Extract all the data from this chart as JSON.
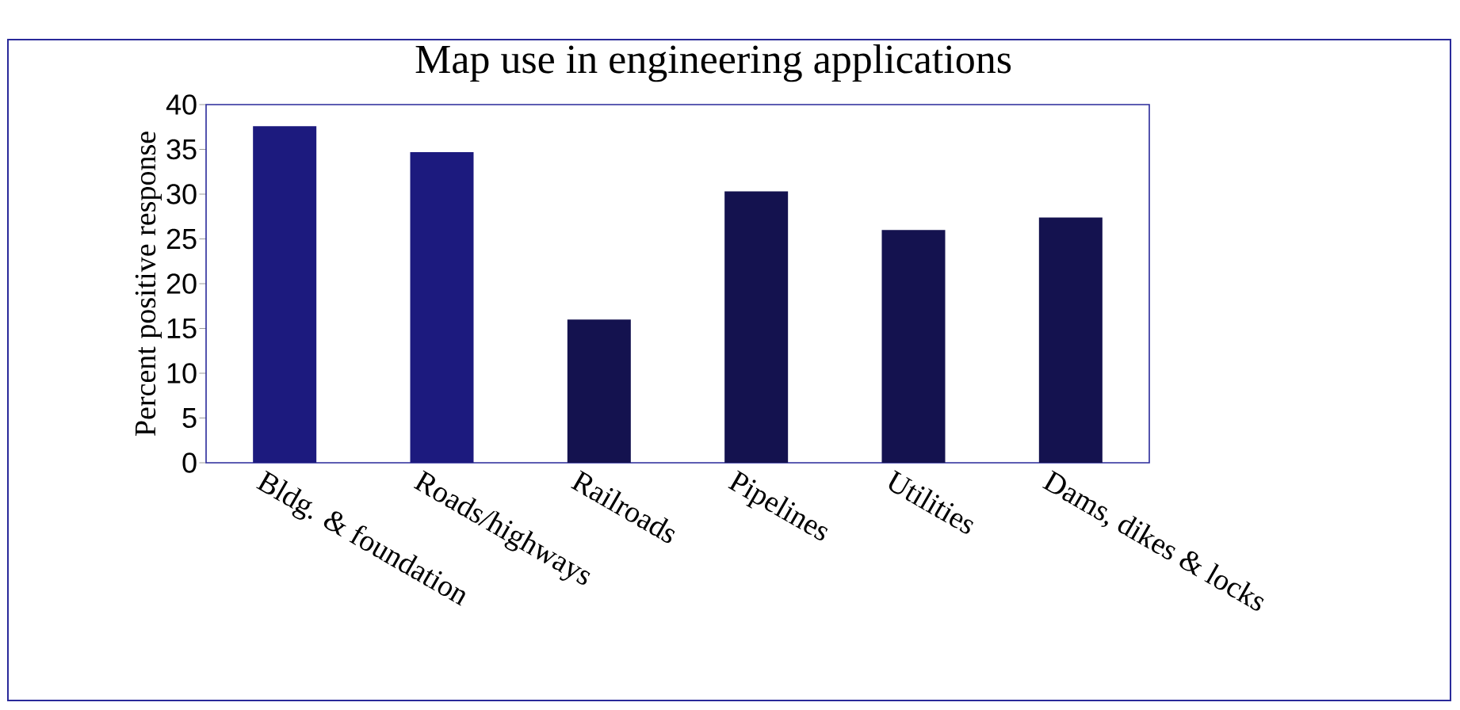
{
  "chart_data": {
    "type": "bar",
    "title": "Map use in engineering applications",
    "ylabel": "Percent positive response",
    "categories": [
      "Bldg. & foundation",
      "Roads/highways",
      "Railroads",
      "Pipelines",
      "Utilities",
      "Dams, dikes & locks"
    ],
    "values": [
      37.6,
      34.7,
      16.0,
      30.3,
      26.0,
      27.4
    ],
    "colors": [
      "#1c1a7e",
      "#1c1a7e",
      "#14124f",
      "#14124f",
      "#14124f",
      "#14124f"
    ],
    "ylim": [
      0,
      40
    ],
    "yticks": [
      0,
      5,
      10,
      15,
      20,
      25,
      30,
      35,
      40
    ],
    "grid": false
  }
}
